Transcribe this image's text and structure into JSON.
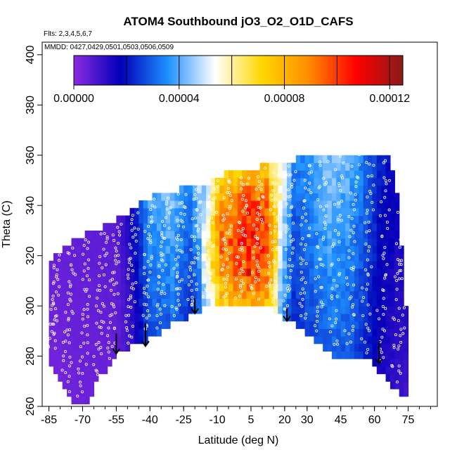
{
  "chart_data": {
    "type": "heatmap",
    "title": "ATOM4 Southbound jO3_O2_O1D_CAFS",
    "flights_label": "Flts: 2,3,4,5,6,7",
    "dates_label": "MMDD: 0427,0429,0501,0503,0506,0509",
    "xlabel": "Latitude (deg N)",
    "ylabel": "Theta (C)",
    "xlim": [
      -88,
      88
    ],
    "ylim": [
      260,
      405
    ],
    "x_ticks": [
      -85,
      -70,
      -55,
      -40,
      -25,
      -10,
      5,
      20,
      30,
      45,
      60,
      75
    ],
    "x_tick_labels": [
      "-85",
      "-70",
      "-55",
      "-40",
      "-25",
      "-10",
      "5",
      "20",
      "30",
      "45",
      "60",
      "75"
    ],
    "y_ticks": [
      260,
      280,
      300,
      320,
      340,
      360,
      380,
      400
    ],
    "y_tick_labels": [
      "260",
      "280",
      "300",
      "320",
      "340",
      "360",
      "380",
      "400"
    ],
    "colorbar": {
      "range": [
        0,
        0.000125
      ],
      "ticks": [
        0,
        4e-05,
        8e-05,
        0.00012
      ],
      "tick_labels": [
        "0.00000",
        "0.00004",
        "0.00008",
        "0.00012"
      ],
      "colors": [
        "#8a2be2",
        "#0000b8",
        "#1e90ff",
        "#ffffff",
        "#ffd700",
        "#ff8c00",
        "#ff0000",
        "#8b1a1a"
      ]
    },
    "upper_bound_theta": [
      {
        "lat": -85,
        "theta": 317
      },
      {
        "lat": -78,
        "theta": 324
      },
      {
        "lat": -70,
        "theta": 328
      },
      {
        "lat": -62,
        "theta": 331
      },
      {
        "lat": -55,
        "theta": 334
      },
      {
        "lat": -48,
        "theta": 338
      },
      {
        "lat": -40,
        "theta": 343
      },
      {
        "lat": -32,
        "theta": 345
      },
      {
        "lat": -24,
        "theta": 347
      },
      {
        "lat": -16,
        "theta": 348
      },
      {
        "lat": -10,
        "theta": 352
      },
      {
        "lat": -2,
        "theta": 353
      },
      {
        "lat": 6,
        "theta": 355
      },
      {
        "lat": 14,
        "theta": 356
      },
      {
        "lat": 22,
        "theta": 358
      },
      {
        "lat": 30,
        "theta": 359
      },
      {
        "lat": 38,
        "theta": 360
      },
      {
        "lat": 46,
        "theta": 360
      },
      {
        "lat": 54,
        "theta": 361
      },
      {
        "lat": 60,
        "theta": 361
      },
      {
        "lat": 66,
        "theta": 360
      },
      {
        "lat": 70,
        "theta": 345
      },
      {
        "lat": 74,
        "theta": 300
      }
    ],
    "lower_bound_theta": [
      {
        "lat": -85,
        "theta": 278
      },
      {
        "lat": -80,
        "theta": 270
      },
      {
        "lat": -75,
        "theta": 262
      },
      {
        "lat": -68,
        "theta": 262
      },
      {
        "lat": -62,
        "theta": 272
      },
      {
        "lat": -55,
        "theta": 280
      },
      {
        "lat": -48,
        "theta": 284
      },
      {
        "lat": -40,
        "theta": 287
      },
      {
        "lat": -30,
        "theta": 293
      },
      {
        "lat": -20,
        "theta": 297
      },
      {
        "lat": -12,
        "theta": 301
      },
      {
        "lat": -5,
        "theta": 300
      },
      {
        "lat": 5,
        "theta": 300
      },
      {
        "lat": 12,
        "theta": 300
      },
      {
        "lat": 20,
        "theta": 295
      },
      {
        "lat": 28,
        "theta": 291
      },
      {
        "lat": 35,
        "theta": 285
      },
      {
        "lat": 43,
        "theta": 279
      },
      {
        "lat": 50,
        "theta": 280
      },
      {
        "lat": 58,
        "theta": 278
      },
      {
        "lat": 65,
        "theta": 271
      },
      {
        "lat": 72,
        "theta": 265
      }
    ],
    "field_profile": [
      {
        "lat": -85,
        "value": 4e-06
      },
      {
        "lat": -70,
        "value": 5e-06
      },
      {
        "lat": -55,
        "value": 6e-06
      },
      {
        "lat": -48,
        "value": 1.5e-05
      },
      {
        "lat": -40,
        "value": 3.5e-05
      },
      {
        "lat": -30,
        "value": 4e-05
      },
      {
        "lat": -22,
        "value": 3e-05
      },
      {
        "lat": -15,
        "value": 5e-05
      },
      {
        "lat": -8,
        "value": 8.5e-05
      },
      {
        "lat": 0,
        "value": 9e-05
      },
      {
        "lat": 6,
        "value": 9.5e-05
      },
      {
        "lat": 12,
        "value": 9e-05
      },
      {
        "lat": 17,
        "value": 6e-05
      },
      {
        "lat": 24,
        "value": 3e-05
      },
      {
        "lat": 32,
        "value": 3.5e-05
      },
      {
        "lat": 40,
        "value": 4e-05
      },
      {
        "lat": 48,
        "value": 3.8e-05
      },
      {
        "lat": 55,
        "value": 3e-05
      },
      {
        "lat": 62,
        "value": 2e-05
      },
      {
        "lat": 70,
        "value": 1.5e-05
      },
      {
        "lat": 75,
        "value": 1.2e-05
      }
    ],
    "hotspots": [
      {
        "lat": 9,
        "theta": 324,
        "value": 0.000112
      },
      {
        "lat": 4,
        "theta": 313,
        "value": 0.00011
      }
    ],
    "arrows": [
      {
        "lat": -55,
        "theta_top": 289,
        "theta_bottom": 281
      },
      {
        "lat": -42,
        "theta_top": 293,
        "theta_bottom": 284
      },
      {
        "lat": -20,
        "theta_top": 303,
        "theta_bottom": 297
      },
      {
        "lat": 21,
        "theta_top": 299,
        "theta_bottom": 294
      },
      {
        "lat": 62,
        "theta_top": 286,
        "theta_bottom": 277
      }
    ],
    "flight_tracks_lat": [
      -83,
      -76,
      -69,
      -62,
      -56,
      -48,
      -41,
      -34,
      -27,
      -20,
      -13,
      -6,
      1,
      8,
      15,
      22,
      29,
      36,
      43,
      50,
      57,
      64,
      71
    ]
  }
}
